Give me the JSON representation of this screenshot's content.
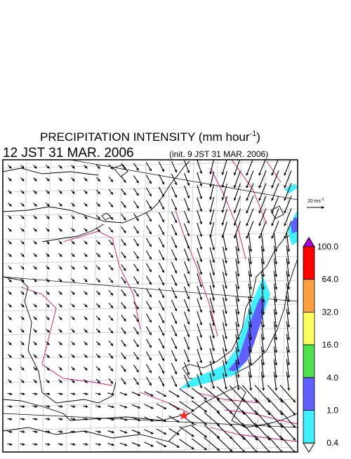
{
  "header": {
    "title": "PRECIPITATION INTENSITY (mm hour",
    "title_exponent": "-1",
    "title_close": ")",
    "valid_time": "12 JST 31 MAR. 2006",
    "init_time": "(init. 9 JST 31 MAR. 2006)"
  },
  "vector_scale": {
    "label": "20 ms",
    "exponent": "-1"
  },
  "colorbar": {
    "over_color": "#b000e0",
    "under_color": "#ffffff",
    "colors": [
      "#ff0000",
      "#ffa040",
      "#ffff60",
      "#50e050",
      "#6060ff",
      "#40f0ff"
    ],
    "labels": [
      "100.0",
      "64.0",
      "32.0",
      "16.0",
      "4.0",
      "1.0",
      "0.4"
    ]
  }
}
